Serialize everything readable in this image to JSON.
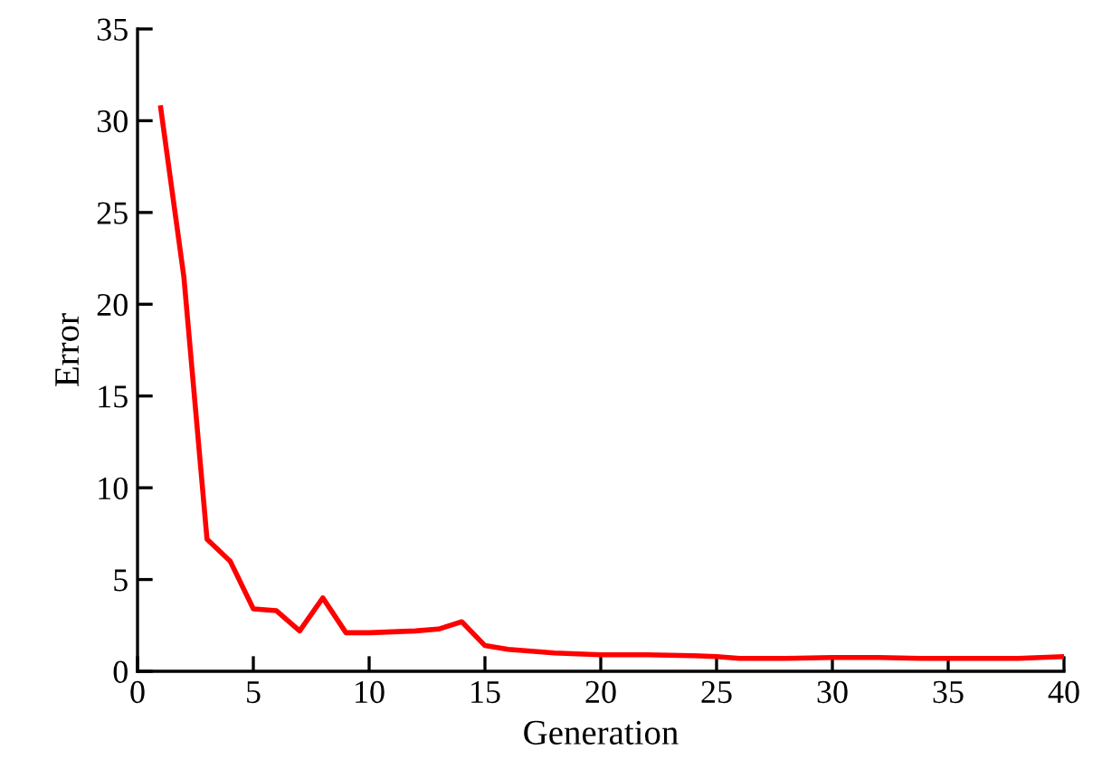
{
  "chart_data": {
    "type": "line",
    "xlabel": "Generation",
    "ylabel": "Error",
    "x": [
      1,
      2,
      3,
      4,
      5,
      6,
      7,
      8,
      9,
      10,
      11,
      12,
      13,
      14,
      15,
      16,
      17,
      18,
      19,
      20,
      22,
      24,
      25,
      26,
      28,
      30,
      32,
      34,
      36,
      38,
      40
    ],
    "series": [
      {
        "color": "#ff0000",
        "values": [
          30.7,
          21.5,
          7.2,
          6.0,
          3.4,
          3.3,
          2.2,
          4.0,
          2.1,
          2.1,
          2.15,
          2.2,
          2.3,
          2.7,
          1.4,
          1.2,
          1.1,
          1.0,
          0.95,
          0.9,
          0.9,
          0.85,
          0.8,
          0.7,
          0.7,
          0.75,
          0.75,
          0.7,
          0.7,
          0.7,
          0.8
        ]
      }
    ],
    "xlim": [
      0,
      40
    ],
    "ylim": [
      0,
      35
    ],
    "xticks": [
      0,
      5,
      10,
      15,
      20,
      25,
      30,
      35,
      40
    ],
    "yticks": [
      0,
      5,
      10,
      15,
      20,
      25,
      30,
      35
    ],
    "grid": false,
    "legend": false,
    "marker": "none",
    "line_style": "solid"
  }
}
